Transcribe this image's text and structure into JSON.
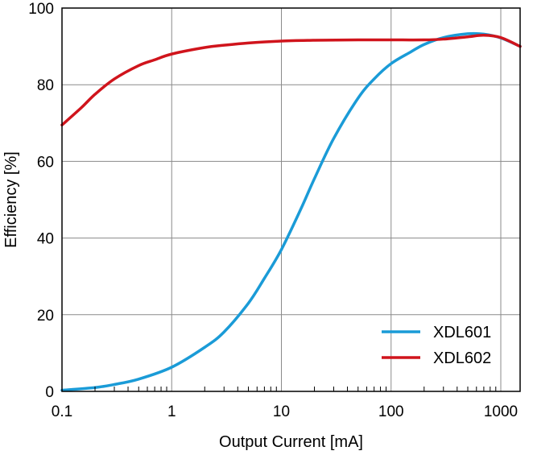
{
  "chart_data": {
    "type": "line",
    "title": "",
    "xlabel": "Output Current [mA]",
    "ylabel": "Efficiency [%]",
    "x_scale": "log",
    "xlim": [
      0.1,
      1500
    ],
    "ylim": [
      0,
      100
    ],
    "x_ticks": [
      0.1,
      1,
      10,
      100,
      1000
    ],
    "x_tick_labels": [
      "0.1",
      "1",
      "10",
      "100",
      "1000"
    ],
    "y_ticks": [
      0,
      20,
      40,
      60,
      80,
      100
    ],
    "y_tick_labels": [
      "0",
      "20",
      "40",
      "60",
      "80",
      "100"
    ],
    "grid": true,
    "legend_position": "bottom-right",
    "series": [
      {
        "name": "XDL601",
        "color": "#1a9bd7",
        "x": [
          0.1,
          0.2,
          0.3,
          0.5,
          1,
          2,
          3,
          5,
          7,
          10,
          15,
          20,
          30,
          50,
          70,
          100,
          150,
          200,
          300,
          500,
          700,
          1000,
          1500
        ],
        "y": [
          0.3,
          1.0,
          1.8,
          3.2,
          6.3,
          11.5,
          15.5,
          23.0,
          29.5,
          37.0,
          47.5,
          55.5,
          66.0,
          76.5,
          81.5,
          85.5,
          88.5,
          90.5,
          92.3,
          93.3,
          93.2,
          92.2,
          90.0
        ]
      },
      {
        "name": "XDL602",
        "color": "#d0141c",
        "x": [
          0.1,
          0.15,
          0.2,
          0.3,
          0.5,
          0.7,
          1,
          2,
          3,
          5,
          10,
          20,
          50,
          100,
          200,
          300,
          500,
          700,
          1000,
          1500
        ],
        "y": [
          69.5,
          74.0,
          77.5,
          81.5,
          85.0,
          86.5,
          88.0,
          89.7,
          90.3,
          90.9,
          91.4,
          91.6,
          91.7,
          91.7,
          91.7,
          91.9,
          92.5,
          92.9,
          92.3,
          90.0
        ]
      }
    ]
  }
}
